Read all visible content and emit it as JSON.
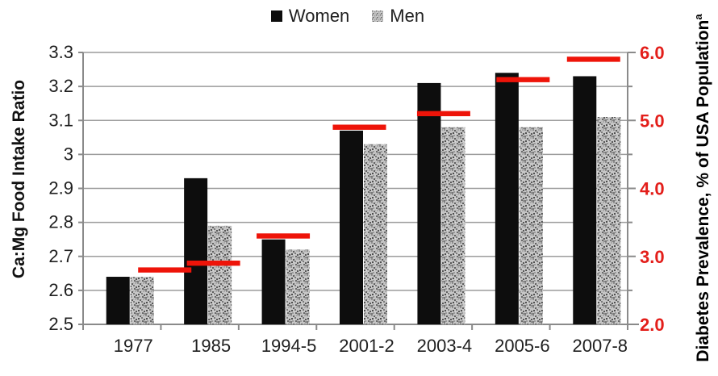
{
  "chart_data": {
    "type": "bar",
    "title": "",
    "categories": [
      "1977",
      "1985",
      "1994-5",
      "2001-2",
      "2003-4",
      "2005-6",
      "2007-8"
    ],
    "series": [
      {
        "name": "Women",
        "type": "bar",
        "axis": "left",
        "color": "#0d0d0d",
        "values": [
          2.64,
          2.93,
          2.75,
          3.07,
          3.21,
          3.24,
          3.23
        ]
      },
      {
        "name": "Men",
        "type": "bar",
        "axis": "left",
        "color": "speckled-gray",
        "values": [
          2.64,
          2.79,
          2.72,
          3.03,
          3.08,
          3.08,
          3.11
        ]
      },
      {
        "name": "Diabetes Prevalence",
        "type": "dash-marker",
        "axis": "right",
        "color": "#ee1409",
        "values": [
          2.8,
          2.9,
          3.3,
          4.9,
          5.1,
          5.6,
          5.9
        ]
      }
    ],
    "ylabel_left": "Ca:Mg Food Intake Ratio",
    "ylabel_right": "Diabetes Prevalence, % of USA Population",
    "ylabel_right_superscript": "a",
    "ylim_left": [
      2.5,
      3.3
    ],
    "ylim_right": [
      2.0,
      6.0
    ],
    "yticks_left": [
      "3.3",
      "3.2",
      "3.1",
      "3",
      "2.9",
      "2.8",
      "2.7",
      "2.6",
      "2.5"
    ],
    "yticks_right": [
      "6.0",
      "5.0",
      "4.0",
      "3.0",
      "2.0"
    ],
    "yticks_right_minor": [
      2.5,
      3.5,
      4.5,
      5.5
    ],
    "grid": "horizontal-only",
    "legend_position": "top-center",
    "colors": {
      "women_bar": "#0d0d0d",
      "men_bar_base": "#c6c6c6",
      "red_accent": "#ee1409",
      "red_text": "#e31e1a",
      "gridline": "#9c9c9c",
      "axis_line": "#8a8a8a",
      "tick_text": "#1f1f1f"
    }
  }
}
